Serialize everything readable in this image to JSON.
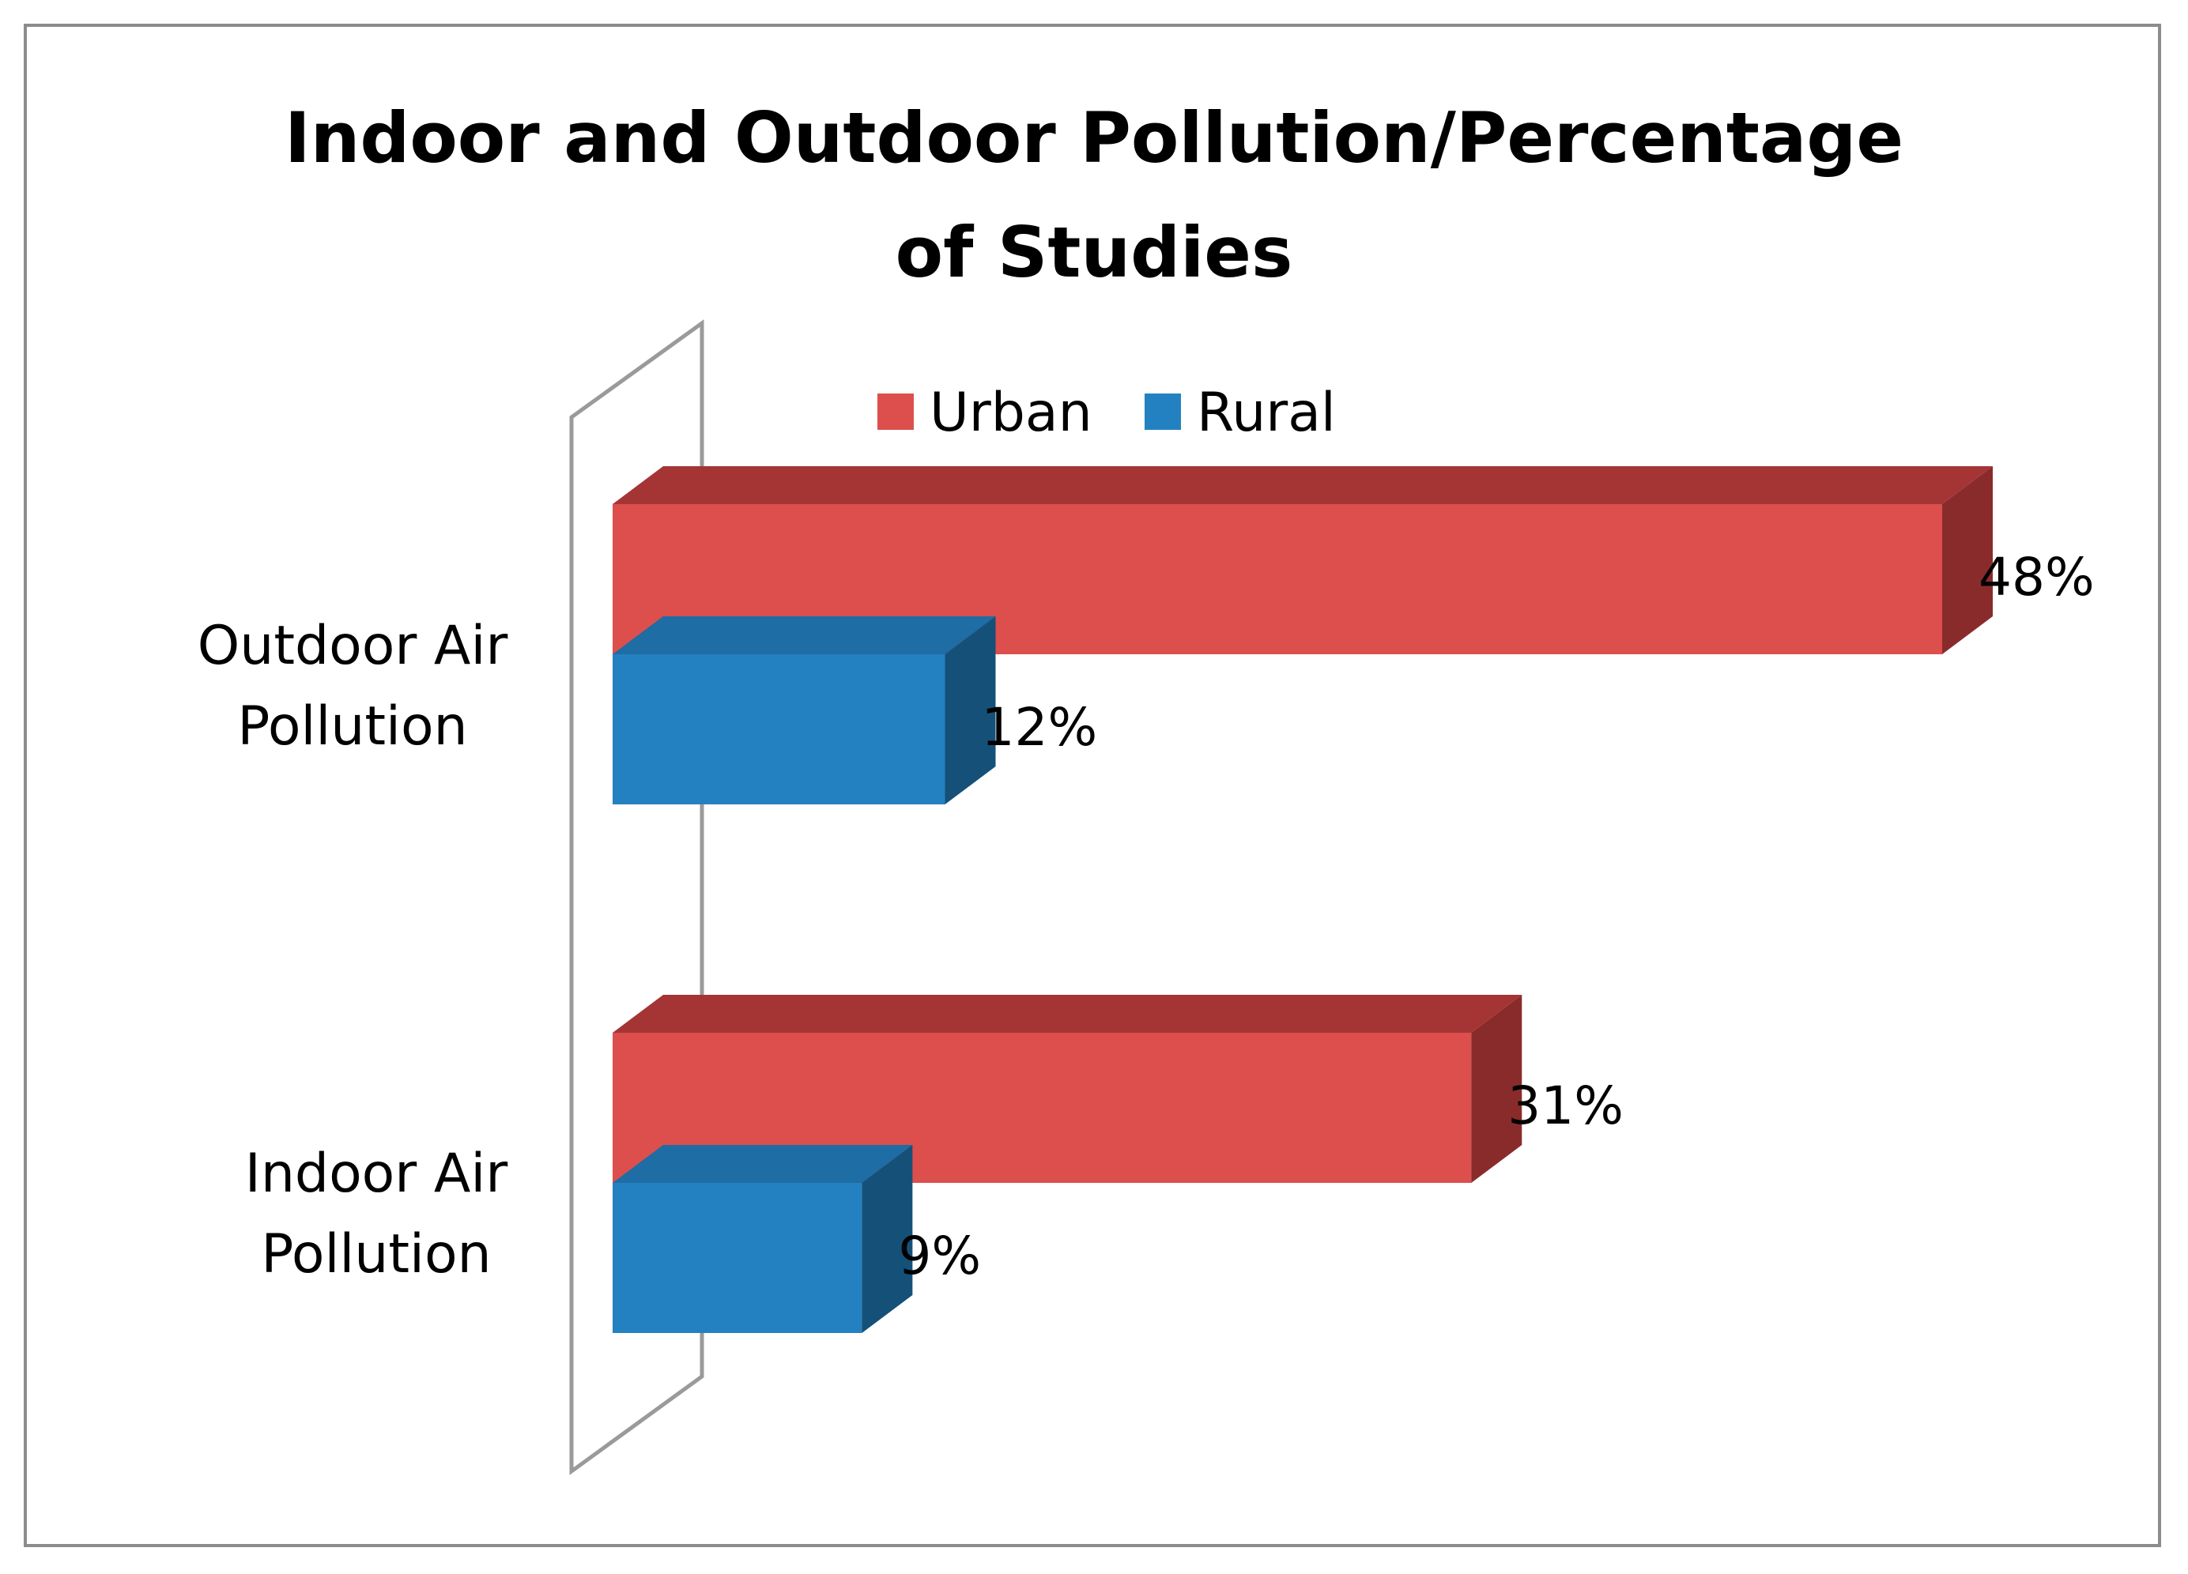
{
  "chart_data": {
    "type": "bar",
    "orientation": "horizontal",
    "title": "Indoor and Outdoor Pollution/Percentage of Studies",
    "title_lines": [
      "Indoor and Outdoor Pollution/Percentage",
      "of Studies"
    ],
    "categories": [
      "Outdoor Air Pollution",
      "Indoor Air Pollution"
    ],
    "category_lines": [
      [
        "Outdoor Air",
        "Pollution"
      ],
      [
        "Indoor Air",
        "Pollution"
      ]
    ],
    "series": [
      {
        "name": "Urban",
        "values": [
          48,
          31
        ],
        "labels": [
          "48%",
          "31%"
        ],
        "color": "#dc4f4c",
        "top_color": "#a53535",
        "side_color": "#8a2b2b"
      },
      {
        "name": "Rural",
        "values": [
          12,
          9
        ],
        "labels": [
          "12%",
          "9%"
        ],
        "color": "#2481c1",
        "top_color": "#1e6da4",
        "side_color": "#155079"
      }
    ],
    "value_unit": "%",
    "xlim": [
      0,
      48
    ],
    "legend_position": "top",
    "grid": false
  }
}
